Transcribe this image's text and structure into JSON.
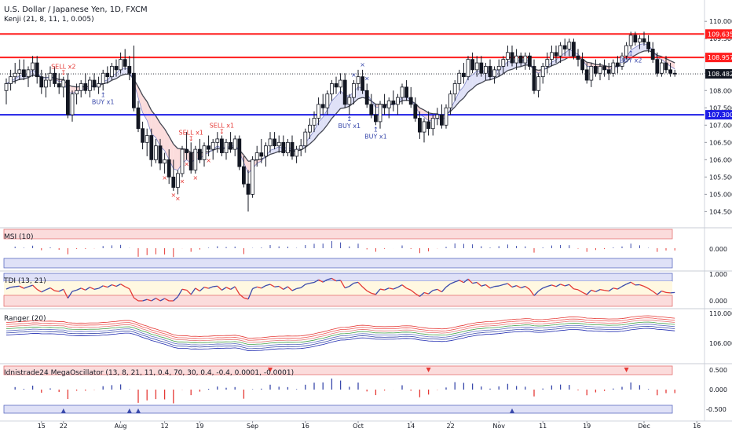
{
  "chart_data": {
    "type": "candlestick",
    "title": "U.S. Dollar / Japanese Yen, 1D, FXCM",
    "subtitle": "Kenji (21, 8, 11, 1, 0.005)",
    "x_tick_labels": [
      "15",
      "22",
      "Aug",
      "12",
      "19",
      "Sep",
      "16",
      "Oct",
      "14",
      "22",
      "Nov",
      "11",
      "19",
      "Dec",
      "16"
    ],
    "y_tick_labels": [
      "110.000",
      "109.500",
      "109.000",
      "108.500",
      "108.000",
      "107.500",
      "107.000",
      "106.500",
      "106.000",
      "105.500",
      "105.000",
      "104.500"
    ],
    "y_tick_values": [
      110.0,
      109.5,
      109.0,
      108.5,
      108.0,
      107.5,
      107.0,
      106.5,
      106.0,
      105.5,
      105.0,
      104.5
    ],
    "ylim": [
      104.1,
      110.3
    ],
    "current_price": {
      "label": "108.482",
      "value": 108.482
    },
    "price_lines": [
      {
        "label": "109.635",
        "value": 109.635,
        "color": "#ff1e1e"
      },
      {
        "label": "108.957",
        "value": 108.957,
        "color": "#ff1e1e"
      },
      {
        "label": "107.300",
        "value": 107.3,
        "color": "#1e1ee6"
      }
    ],
    "annotations": [
      {
        "text": "SELL x2",
        "bar": 13,
        "side": "above",
        "color": "#e53935"
      },
      {
        "text": "BUY x1",
        "bar": 22,
        "side": "below",
        "color": "#3949ab"
      },
      {
        "text": "SELL x1",
        "bar": 42,
        "side": "above",
        "color": "#e53935"
      },
      {
        "text": "SELL x1",
        "bar": 49,
        "side": "above",
        "color": "#e53935"
      },
      {
        "text": "BUY x1",
        "bar": 78,
        "side": "below",
        "color": "#3949ab"
      },
      {
        "text": "BUY x1",
        "bar": 84,
        "side": "below",
        "color": "#3949ab"
      },
      {
        "text": "BUY x2",
        "bar": 142,
        "side": "below",
        "color": "#3949ab"
      }
    ],
    "x_markers_bars": [
      36,
      38,
      39,
      40,
      41,
      43,
      46
    ],
    "x_markers_above_bars": [
      79,
      81,
      82
    ],
    "ohlc": [
      [
        108.0,
        108.35,
        107.6,
        108.2
      ],
      [
        108.2,
        108.6,
        108.0,
        108.4
      ],
      [
        108.4,
        108.8,
        108.2,
        108.5
      ],
      [
        108.5,
        108.9,
        108.3,
        108.6
      ],
      [
        108.6,
        108.9,
        108.3,
        108.4
      ],
      [
        108.4,
        108.7,
        108.1,
        108.6
      ],
      [
        108.6,
        109.0,
        108.4,
        108.8
      ],
      [
        108.8,
        109.0,
        108.2,
        108.4
      ],
      [
        108.4,
        108.6,
        107.9,
        108.1
      ],
      [
        108.1,
        108.5,
        107.8,
        108.3
      ],
      [
        108.3,
        108.7,
        108.1,
        108.5
      ],
      [
        108.5,
        108.7,
        108.1,
        108.2
      ],
      [
        108.2,
        108.5,
        107.9,
        108.1
      ],
      [
        108.1,
        108.4,
        107.8,
        108.3
      ],
      [
        108.3,
        108.5,
        107.2,
        107.3
      ],
      [
        107.3,
        108.0,
        107.1,
        107.9
      ],
      [
        107.9,
        108.2,
        107.6,
        108.0
      ],
      [
        108.0,
        108.3,
        107.8,
        108.2
      ],
      [
        108.2,
        108.5,
        107.9,
        108.0
      ],
      [
        108.0,
        108.4,
        107.8,
        108.3
      ],
      [
        108.3,
        108.5,
        108.0,
        108.1
      ],
      [
        108.1,
        108.4,
        107.9,
        108.2
      ],
      [
        108.2,
        108.6,
        108.0,
        108.5
      ],
      [
        108.5,
        108.7,
        108.2,
        108.4
      ],
      [
        108.4,
        108.8,
        108.3,
        108.7
      ],
      [
        108.7,
        108.9,
        108.4,
        108.6
      ],
      [
        108.6,
        109.1,
        108.5,
        108.9
      ],
      [
        108.9,
        109.2,
        108.6,
        108.7
      ],
      [
        108.7,
        109.0,
        108.3,
        108.5
      ],
      [
        108.5,
        109.3,
        107.4,
        107.5
      ],
      [
        107.5,
        107.7,
        106.8,
        106.9
      ],
      [
        106.9,
        107.1,
        106.3,
        106.5
      ],
      [
        106.5,
        106.9,
        106.1,
        106.7
      ],
      [
        106.7,
        106.9,
        105.8,
        106.0
      ],
      [
        106.0,
        106.6,
        105.9,
        106.4
      ],
      [
        106.4,
        106.6,
        105.7,
        105.9
      ],
      [
        105.9,
        106.2,
        105.6,
        106.0
      ],
      [
        106.0,
        106.3,
        105.3,
        105.5
      ],
      [
        105.5,
        106.0,
        105.1,
        105.2
      ],
      [
        105.2,
        105.7,
        105.0,
        105.6
      ],
      [
        105.6,
        106.4,
        105.5,
        106.3
      ],
      [
        106.3,
        106.8,
        106.0,
        106.2
      ],
      [
        106.2,
        106.5,
        105.6,
        105.7
      ],
      [
        105.7,
        106.4,
        105.6,
        106.3
      ],
      [
        106.3,
        106.6,
        105.9,
        106.0
      ],
      [
        106.0,
        106.5,
        105.8,
        106.4
      ],
      [
        106.4,
        106.7,
        106.1,
        106.3
      ],
      [
        106.3,
        106.6,
        106.0,
        106.5
      ],
      [
        106.5,
        106.8,
        106.2,
        106.6
      ],
      [
        106.6,
        106.7,
        106.1,
        106.2
      ],
      [
        106.2,
        106.6,
        106.0,
        106.5
      ],
      [
        106.5,
        106.8,
        106.2,
        106.3
      ],
      [
        106.3,
        106.7,
        106.1,
        106.6
      ],
      [
        106.6,
        106.7,
        105.7,
        105.8
      ],
      [
        105.8,
        106.1,
        105.2,
        105.3
      ],
      [
        105.3,
        105.7,
        104.5,
        105.0
      ],
      [
        105.0,
        106.1,
        104.9,
        106.0
      ],
      [
        106.0,
        106.4,
        105.8,
        106.2
      ],
      [
        106.2,
        106.6,
        105.9,
        106.1
      ],
      [
        106.1,
        106.5,
        105.8,
        106.4
      ],
      [
        106.4,
        106.8,
        106.2,
        106.6
      ],
      [
        106.6,
        106.8,
        106.3,
        106.4
      ],
      [
        106.4,
        106.7,
        106.2,
        106.5
      ],
      [
        106.5,
        106.7,
        106.1,
        106.2
      ],
      [
        106.2,
        106.6,
        106.1,
        106.5
      ],
      [
        106.5,
        106.7,
        106.0,
        106.1
      ],
      [
        106.1,
        106.4,
        105.9,
        106.3
      ],
      [
        106.3,
        106.6,
        106.1,
        106.4
      ],
      [
        106.4,
        106.9,
        106.2,
        106.8
      ],
      [
        106.8,
        107.2,
        106.6,
        107.0
      ],
      [
        107.0,
        107.4,
        106.8,
        107.2
      ],
      [
        107.2,
        107.8,
        107.0,
        107.6
      ],
      [
        107.6,
        107.9,
        107.3,
        107.5
      ],
      [
        107.5,
        108.0,
        107.3,
        107.9
      ],
      [
        107.9,
        108.3,
        107.7,
        108.2
      ],
      [
        108.2,
        108.4,
        107.9,
        108.1
      ],
      [
        108.1,
        108.5,
        107.9,
        108.3
      ],
      [
        108.3,
        108.5,
        107.5,
        107.6
      ],
      [
        107.6,
        107.9,
        107.3,
        107.8
      ],
      [
        107.8,
        108.3,
        107.6,
        108.2
      ],
      [
        108.2,
        108.6,
        108.0,
        108.4
      ],
      [
        108.4,
        108.6,
        107.9,
        108.0
      ],
      [
        108.0,
        108.2,
        107.5,
        107.6
      ],
      [
        107.6,
        107.9,
        107.2,
        107.3
      ],
      [
        107.3,
        107.6,
        107.0,
        107.1
      ],
      [
        107.1,
        107.7,
        106.9,
        107.6
      ],
      [
        107.6,
        107.9,
        107.3,
        107.5
      ],
      [
        107.5,
        107.8,
        107.2,
        107.7
      ],
      [
        107.7,
        108.0,
        107.4,
        107.6
      ],
      [
        107.6,
        107.9,
        107.3,
        107.8
      ],
      [
        107.8,
        108.2,
        107.6,
        108.1
      ],
      [
        108.1,
        108.3,
        107.7,
        107.8
      ],
      [
        107.8,
        108.1,
        107.5,
        107.6
      ],
      [
        107.6,
        107.8,
        107.1,
        107.2
      ],
      [
        107.2,
        107.4,
        106.6,
        106.8
      ],
      [
        106.8,
        107.2,
        106.5,
        107.1
      ],
      [
        107.1,
        107.4,
        106.7,
        106.9
      ],
      [
        106.9,
        107.3,
        106.7,
        107.2
      ],
      [
        107.2,
        107.5,
        107.0,
        107.3
      ],
      [
        107.3,
        107.6,
        106.9,
        107.0
      ],
      [
        107.0,
        107.6,
        106.9,
        107.5
      ],
      [
        107.5,
        108.0,
        107.3,
        107.9
      ],
      [
        107.9,
        108.3,
        107.7,
        108.2
      ],
      [
        108.2,
        108.6,
        108.0,
        108.5
      ],
      [
        108.5,
        108.8,
        108.2,
        108.4
      ],
      [
        108.4,
        109.0,
        108.3,
        108.9
      ],
      [
        108.9,
        109.1,
        108.5,
        108.6
      ],
      [
        108.6,
        109.0,
        108.4,
        108.8
      ],
      [
        108.8,
        109.0,
        108.4,
        108.5
      ],
      [
        108.5,
        108.8,
        108.3,
        108.7
      ],
      [
        108.7,
        108.9,
        108.3,
        108.4
      ],
      [
        108.4,
        108.7,
        108.2,
        108.6
      ],
      [
        108.6,
        108.9,
        108.4,
        108.7
      ],
      [
        108.7,
        109.0,
        108.5,
        108.9
      ],
      [
        108.9,
        109.3,
        108.7,
        109.1
      ],
      [
        109.1,
        109.3,
        108.7,
        108.8
      ],
      [
        108.8,
        109.2,
        108.6,
        109.0
      ],
      [
        109.0,
        109.1,
        108.7,
        108.8
      ],
      [
        108.8,
        109.1,
        108.6,
        109.0
      ],
      [
        109.0,
        109.1,
        108.6,
        108.7
      ],
      [
        108.7,
        108.9,
        107.9,
        108.0
      ],
      [
        108.0,
        108.5,
        107.8,
        108.4
      ],
      [
        108.4,
        108.8,
        108.2,
        108.7
      ],
      [
        108.7,
        109.1,
        108.5,
        108.9
      ],
      [
        108.9,
        109.3,
        108.7,
        109.1
      ],
      [
        109.1,
        109.3,
        108.8,
        109.0
      ],
      [
        109.0,
        109.4,
        108.8,
        109.3
      ],
      [
        109.3,
        109.5,
        109.0,
        109.2
      ],
      [
        109.2,
        109.5,
        109.0,
        109.4
      ],
      [
        109.4,
        109.5,
        108.9,
        109.0
      ],
      [
        109.0,
        109.2,
        108.7,
        108.9
      ],
      [
        108.9,
        109.1,
        108.5,
        108.6
      ],
      [
        108.6,
        108.8,
        108.2,
        108.3
      ],
      [
        108.3,
        108.8,
        108.1,
        108.7
      ],
      [
        108.7,
        108.9,
        108.4,
        108.5
      ],
      [
        108.5,
        108.8,
        108.3,
        108.7
      ],
      [
        108.7,
        108.9,
        108.4,
        108.6
      ],
      [
        108.6,
        108.8,
        108.3,
        108.5
      ],
      [
        108.5,
        108.9,
        108.4,
        108.8
      ],
      [
        108.8,
        109.0,
        108.5,
        108.7
      ],
      [
        108.7,
        109.1,
        108.6,
        109.0
      ],
      [
        109.0,
        109.4,
        108.9,
        109.3
      ],
      [
        109.3,
        109.7,
        109.2,
        109.6
      ],
      [
        109.6,
        109.7,
        109.3,
        109.4
      ],
      [
        109.4,
        109.6,
        109.2,
        109.5
      ],
      [
        109.5,
        109.7,
        109.3,
        109.4
      ],
      [
        109.4,
        109.6,
        109.1,
        109.2
      ],
      [
        109.2,
        109.4,
        108.8,
        108.9
      ],
      [
        108.9,
        109.1,
        108.4,
        108.5
      ],
      [
        108.5,
        108.9,
        108.4,
        108.8
      ],
      [
        108.8,
        109.0,
        108.5,
        108.6
      ],
      [
        108.6,
        108.8,
        108.4,
        108.5
      ],
      [
        108.5,
        108.6,
        108.4,
        108.48
      ]
    ],
    "panels": [
      {
        "name": "MSI (10)",
        "tick_labels": [
          "0.000"
        ]
      },
      {
        "name": "TDI (13, 21)",
        "tick_labels": [
          "1.000",
          "0.000"
        ]
      },
      {
        "name": "Ranger (20)",
        "tick_labels": [
          "110.000",
          "106.000"
        ]
      },
      {
        "name": "Idnistrade24 MegaOscillator (13, 8, 21, 11, 0.4, 70, 30, 0.4, -0.4, 0.0001, -0.0001)",
        "tick_labels": [
          "0.500",
          "0.000",
          "-0.500"
        ]
      }
    ]
  }
}
